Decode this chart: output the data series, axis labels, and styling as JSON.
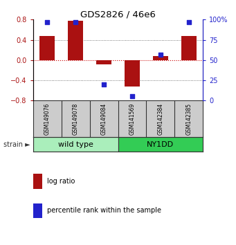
{
  "title": "GDS2826 / 46e6",
  "samples": [
    "GSM149076",
    "GSM149078",
    "GSM149084",
    "GSM141569",
    "GSM142384",
    "GSM142385"
  ],
  "log_ratio": [
    0.47,
    0.78,
    -0.08,
    -0.52,
    0.08,
    0.48
  ],
  "percentile_rank": [
    97,
    97,
    20,
    5,
    57,
    97
  ],
  "bar_color": "#AA1111",
  "dot_color": "#2222CC",
  "ylim_left": [
    -0.8,
    0.8
  ],
  "ylim_right": [
    0,
    100
  ],
  "yticks_left": [
    -0.8,
    -0.4,
    0.0,
    0.4,
    0.8
  ],
  "yticks_right": [
    0,
    25,
    50,
    75,
    100
  ],
  "ytick_labels_right": [
    "0",
    "25",
    "50",
    "75",
    "100%"
  ],
  "groups": [
    {
      "label": "wild type",
      "indices": [
        0,
        1,
        2
      ],
      "color": "#AAEEBB"
    },
    {
      "label": "NY1DD",
      "indices": [
        3,
        4,
        5
      ],
      "color": "#33CC55"
    }
  ],
  "strain_label": "strain",
  "legend": [
    {
      "label": "log ratio",
      "color": "#AA1111"
    },
    {
      "label": "percentile rank within the sample",
      "color": "#2222CC"
    }
  ],
  "hline_zero_color": "#CC0000",
  "hline_dotted_color": "#555555",
  "bg_plot": "#FFFFFF",
  "sample_box_color": "#CCCCCC",
  "bar_width": 0.55
}
